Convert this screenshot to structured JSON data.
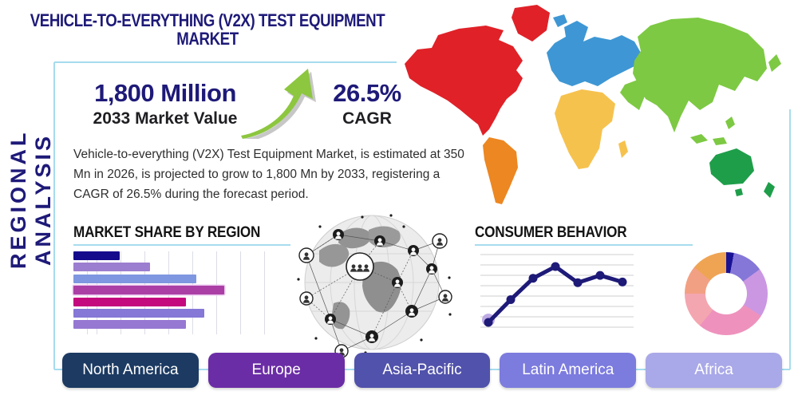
{
  "title": "VEHICLE-TO-EVERYTHING (V2X) TEST EQUIPMENT MARKET",
  "side_label": "REGIONAL ANALYSIS",
  "stats": {
    "market_value": "1,800 Million",
    "market_value_label": "2033 Market Value",
    "cagr_value": "26.5%",
    "cagr_label": "CAGR"
  },
  "description": "Vehicle-to-everything (V2X) Test Equipment Market, is estimated at 350 Mn in 2026, is projected to grow to 1,800 Mn by 2033, registering a CAGR of 26.5% during the forecast period.",
  "colors": {
    "accent_line": "#a6dcee",
    "title_navy": "#1e1a78",
    "arrow_green": "#8dc63f"
  },
  "sections": {
    "market_share_title": "MARKET SHARE BY REGION",
    "consumer_behavior_title": "CONSUMER BEHAVIOR"
  },
  "buttons": [
    {
      "label": "North America",
      "color": "#1c3a62"
    },
    {
      "label": "Europe",
      "color": "#6b2da6"
    },
    {
      "label": "Asia-Pacific",
      "color": "#5152ab"
    },
    {
      "label": "Latin America",
      "color": "#7c7bde"
    },
    {
      "label": "Africa",
      "color": "#a9a8e8"
    }
  ],
  "map": {
    "regions": {
      "north-america": "#e02128",
      "greenland": "#e02128",
      "south-america": "#ec8722",
      "europe": "#3e97d4",
      "africa": "#f6c24e",
      "asia": "#7dc943",
      "oceania": "#1f9e4a"
    }
  },
  "chart_data": [
    {
      "type": "bar",
      "title": "MARKET SHARE BY REGION",
      "orientation": "horizontal",
      "note": "bars are unlabeled in the infographic; values are relative share of axis (0-100)",
      "values": [
        23,
        38,
        61,
        75,
        56,
        65,
        56
      ],
      "xlim": [
        0,
        100
      ],
      "grid": true,
      "bar_colors": [
        "#140a8c",
        "#9b7ecf",
        "#7e97e0",
        "#ab3fa5",
        "#c4087e",
        "#8578d6",
        "#9678d2"
      ],
      "bar_borders": [
        null,
        null,
        null,
        "#eac4ec",
        null,
        null,
        null
      ]
    },
    {
      "type": "line",
      "title": "CONSUMER BEHAVIOR",
      "x": [
        1,
        2,
        3,
        4,
        5,
        6,
        7
      ],
      "values": [
        1.2,
        4.3,
        7.2,
        8.8,
        6.6,
        7.6,
        6.7
      ],
      "ylim": [
        0,
        10
      ],
      "grid": "horizontal",
      "gridline_count": 8,
      "line_color": "#1e1a78",
      "first_point_halo_color": "#b49de0"
    },
    {
      "type": "pie",
      "style": "donut",
      "note": "slices are unlabeled in the infographic; values are percent of whole, clockwise from 12 o'clock",
      "slices": [
        {
          "value": 3,
          "color": "#1a1294"
        },
        {
          "value": 12,
          "color": "#8477d8"
        },
        {
          "value": 19,
          "color": "#cb97e2"
        },
        {
          "value": 27,
          "color": "#ee92bd"
        },
        {
          "value": 14,
          "color": "#f4a6b0"
        },
        {
          "value": 11,
          "color": "#f2a083"
        },
        {
          "value": 14,
          "color": "#efa453"
        }
      ]
    }
  ]
}
